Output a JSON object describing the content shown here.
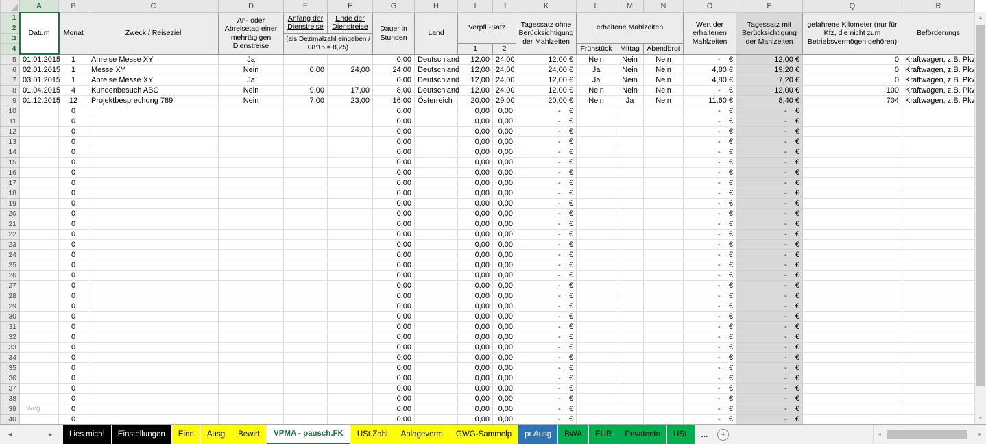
{
  "stray_label": "Weg",
  "icons": {
    "up": "▲",
    "down": "▼",
    "left": "◄",
    "right": "►",
    "tab_prev": "◄",
    "tab_next": "►",
    "ellipsis": "...",
    "plus": "+"
  },
  "grid": {
    "selected_column": "A",
    "columns": [
      "A",
      "B",
      "C",
      "D",
      "E",
      "F",
      "G",
      "H",
      "I",
      "J",
      "K",
      "L",
      "M",
      "N",
      "O",
      "P",
      "Q",
      "R"
    ],
    "header_gutter": [
      "1",
      "2",
      "3",
      "4"
    ],
    "header": {
      "datum": "Datum",
      "monat": "Monat",
      "zweck": "Zweck / Reiseziel",
      "an_ab": "An- oder Abreisetag einer mehrtägigen Dienstreise",
      "anfang": "Anfang der Dienstreise",
      "ende": "Ende der Dienstreise",
      "dezimal_note": "(als Dezimalzahl eingeben / 08:15 = 8,25)",
      "dauer": "Dauer in Stunden",
      "land": "Land",
      "verpfl": "Verpfl.-Satz",
      "verpfl_1": "1",
      "verpfl_2": "2",
      "tagessatz_ohne": "Tagessatz ohne Berücksichtigung der Mahlzeiten",
      "mahlzeiten": "erhaltene Mahlzeiten",
      "fruehstueck": "Frühstück",
      "mittag": "Mittag",
      "abendbrot": "Abendbrot",
      "wert": "Wert der erhaltenen Mahlzeiten",
      "tagessatz_mit": "Tagessatz mit Berücksichtigung der Mahlzeiten",
      "km": "gefahrene Kilometer (nur für Kfz, die nicht zum Betriebsvermögen gehören)",
      "befoerderung": "Beförderungs"
    },
    "col_align": [
      "left",
      "center",
      "left",
      "center",
      "right",
      "right",
      "right",
      "left",
      "right",
      "right",
      "right",
      "center",
      "center",
      "center",
      "right",
      "right",
      "right",
      "left"
    ],
    "rows": [
      {
        "n": "5",
        "cells": [
          "01.01.2015",
          "1",
          "Anreise Messe XY",
          "Ja",
          "",
          "",
          "0,00",
          "Deutschland",
          "12,00",
          "24,00",
          "12,00 €",
          "Nein",
          "Nein",
          "Nein",
          "-    €",
          "12,00 €",
          "0",
          "Kraftwagen, z.B. Pkw"
        ]
      },
      {
        "n": "6",
        "cells": [
          "02.01.2015",
          "1",
          "Messe XY",
          "Nein",
          "0,00",
          "24,00",
          "24,00",
          "Deutschland",
          "12,00",
          "24,00",
          "24,00 €",
          "Ja",
          "Nein",
          "Nein",
          "4,80 €",
          "19,20 €",
          "0",
          "Kraftwagen, z.B. Pkw"
        ]
      },
      {
        "n": "7",
        "cells": [
          "03.01.2015",
          "1",
          "Abreise Messe XY",
          "Ja",
          "",
          "",
          "0,00",
          "Deutschland",
          "12,00",
          "24,00",
          "12,00 €",
          "Ja",
          "Nein",
          "Nein",
          "4,80 €",
          "7,20 €",
          "0",
          "Kraftwagen, z.B. Pkw"
        ]
      },
      {
        "n": "8",
        "cells": [
          "01.04.2015",
          "4",
          "Kundenbesuch ABC",
          "Nein",
          "9,00",
          "17,00",
          "8,00",
          "Deutschland",
          "12,00",
          "24,00",
          "12,00 €",
          "Nein",
          "Nein",
          "Nein",
          "-    €",
          "12,00 €",
          "100",
          "Kraftwagen, z.B. Pkw"
        ]
      },
      {
        "n": "9",
        "cells": [
          "01.12.2015",
          "12",
          "Projektbesprechung 789",
          "Nein",
          "7,00",
          "23,00",
          "16,00",
          "Österreich",
          "20,00",
          "29,00",
          "20,00 €",
          "Nein",
          "Ja",
          "Nein",
          "11,60 €",
          "8,40 €",
          "704",
          "Kraftwagen, z.B. Pkw"
        ]
      },
      {
        "n": "10",
        "cells": [
          "",
          "0",
          "",
          "",
          "",
          "",
          "0,00",
          "",
          "0,00",
          "0,00",
          "-    €",
          "",
          "",
          "",
          "-    €",
          "-    €",
          "",
          ""
        ]
      },
      {
        "n": "11",
        "cells": [
          "",
          "0",
          "",
          "",
          "",
          "",
          "0,00",
          "",
          "0,00",
          "0,00",
          "-    €",
          "",
          "",
          "",
          "-    €",
          "-    €",
          "",
          ""
        ]
      },
      {
        "n": "12",
        "cells": [
          "",
          "0",
          "",
          "",
          "",
          "",
          "0,00",
          "",
          "0,00",
          "0,00",
          "-    €",
          "",
          "",
          "",
          "-    €",
          "-    €",
          "",
          ""
        ]
      },
      {
        "n": "13",
        "cells": [
          "",
          "0",
          "",
          "",
          "",
          "",
          "0,00",
          "",
          "0,00",
          "0,00",
          "-    €",
          "",
          "",
          "",
          "-    €",
          "-    €",
          "",
          ""
        ]
      },
      {
        "n": "14",
        "cells": [
          "",
          "0",
          "",
          "",
          "",
          "",
          "0,00",
          "",
          "0,00",
          "0,00",
          "-    €",
          "",
          "",
          "",
          "-    €",
          "-    €",
          "",
          ""
        ]
      },
      {
        "n": "15",
        "cells": [
          "",
          "0",
          "",
          "",
          "",
          "",
          "0,00",
          "",
          "0,00",
          "0,00",
          "-    €",
          "",
          "",
          "",
          "-    €",
          "-    €",
          "",
          ""
        ]
      },
      {
        "n": "16",
        "cells": [
          "",
          "0",
          "",
          "",
          "",
          "",
          "0,00",
          "",
          "0,00",
          "0,00",
          "-    €",
          "",
          "",
          "",
          "-    €",
          "-    €",
          "",
          ""
        ]
      },
      {
        "n": "17",
        "cells": [
          "",
          "0",
          "",
          "",
          "",
          "",
          "0,00",
          "",
          "0,00",
          "0,00",
          "-    €",
          "",
          "",
          "",
          "-    €",
          "-    €",
          "",
          ""
        ]
      },
      {
        "n": "18",
        "cells": [
          "",
          "0",
          "",
          "",
          "",
          "",
          "0,00",
          "",
          "0,00",
          "0,00",
          "-    €",
          "",
          "",
          "",
          "-    €",
          "-    €",
          "",
          ""
        ]
      },
      {
        "n": "19",
        "cells": [
          "",
          "0",
          "",
          "",
          "",
          "",
          "0,00",
          "",
          "0,00",
          "0,00",
          "-    €",
          "",
          "",
          "",
          "-    €",
          "-    €",
          "",
          ""
        ]
      },
      {
        "n": "20",
        "cells": [
          "",
          "0",
          "",
          "",
          "",
          "",
          "0,00",
          "",
          "0,00",
          "0,00",
          "-    €",
          "",
          "",
          "",
          "-    €",
          "-    €",
          "",
          ""
        ]
      },
      {
        "n": "21",
        "cells": [
          "",
          "0",
          "",
          "",
          "",
          "",
          "0,00",
          "",
          "0,00",
          "0,00",
          "-    €",
          "",
          "",
          "",
          "-    €",
          "-    €",
          "",
          ""
        ]
      },
      {
        "n": "22",
        "cells": [
          "",
          "0",
          "",
          "",
          "",
          "",
          "0,00",
          "",
          "0,00",
          "0,00",
          "-    €",
          "",
          "",
          "",
          "-    €",
          "-    €",
          "",
          ""
        ]
      },
      {
        "n": "23",
        "cells": [
          "",
          "0",
          "",
          "",
          "",
          "",
          "0,00",
          "",
          "0,00",
          "0,00",
          "-    €",
          "",
          "",
          "",
          "-    €",
          "-    €",
          "",
          ""
        ]
      },
      {
        "n": "24",
        "cells": [
          "",
          "0",
          "",
          "",
          "",
          "",
          "0,00",
          "",
          "0,00",
          "0,00",
          "-    €",
          "",
          "",
          "",
          "-    €",
          "-    €",
          "",
          ""
        ]
      },
      {
        "n": "25",
        "cells": [
          "",
          "0",
          "",
          "",
          "",
          "",
          "0,00",
          "",
          "0,00",
          "0,00",
          "-    €",
          "",
          "",
          "",
          "-    €",
          "-    €",
          "",
          ""
        ]
      },
      {
        "n": "26",
        "cells": [
          "",
          "0",
          "",
          "",
          "",
          "",
          "0,00",
          "",
          "0,00",
          "0,00",
          "-    €",
          "",
          "",
          "",
          "-    €",
          "-    €",
          "",
          ""
        ]
      },
      {
        "n": "27",
        "cells": [
          "",
          "0",
          "",
          "",
          "",
          "",
          "0,00",
          "",
          "0,00",
          "0,00",
          "-    €",
          "",
          "",
          "",
          "-    €",
          "-    €",
          "",
          ""
        ]
      },
      {
        "n": "28",
        "cells": [
          "",
          "0",
          "",
          "",
          "",
          "",
          "0,00",
          "",
          "0,00",
          "0,00",
          "-    €",
          "",
          "",
          "",
          "-    €",
          "-    €",
          "",
          ""
        ]
      },
      {
        "n": "29",
        "cells": [
          "",
          "0",
          "",
          "",
          "",
          "",
          "0,00",
          "",
          "0,00",
          "0,00",
          "-    €",
          "",
          "",
          "",
          "-    €",
          "-    €",
          "",
          ""
        ]
      },
      {
        "n": "30",
        "cells": [
          "",
          "0",
          "",
          "",
          "",
          "",
          "0,00",
          "",
          "0,00",
          "0,00",
          "-    €",
          "",
          "",
          "",
          "-    €",
          "-    €",
          "",
          ""
        ]
      },
      {
        "n": "31",
        "cells": [
          "",
          "0",
          "",
          "",
          "",
          "",
          "0,00",
          "",
          "0,00",
          "0,00",
          "-    €",
          "",
          "",
          "",
          "-    €",
          "-    €",
          "",
          ""
        ]
      },
      {
        "n": "32",
        "cells": [
          "",
          "0",
          "",
          "",
          "",
          "",
          "0,00",
          "",
          "0,00",
          "0,00",
          "-    €",
          "",
          "",
          "",
          "-    €",
          "-    €",
          "",
          ""
        ]
      },
      {
        "n": "33",
        "cells": [
          "",
          "0",
          "",
          "",
          "",
          "",
          "0,00",
          "",
          "0,00",
          "0,00",
          "-    €",
          "",
          "",
          "",
          "-    €",
          "-    €",
          "",
          ""
        ]
      },
      {
        "n": "34",
        "cells": [
          "",
          "0",
          "",
          "",
          "",
          "",
          "0,00",
          "",
          "0,00",
          "0,00",
          "-    €",
          "",
          "",
          "",
          "-    €",
          "-    €",
          "",
          ""
        ]
      },
      {
        "n": "35",
        "cells": [
          "",
          "0",
          "",
          "",
          "",
          "",
          "0,00",
          "",
          "0,00",
          "0,00",
          "-    €",
          "",
          "",
          "",
          "-    €",
          "-    €",
          "",
          ""
        ]
      },
      {
        "n": "36",
        "cells": [
          "",
          "0",
          "",
          "",
          "",
          "",
          "0,00",
          "",
          "0,00",
          "0,00",
          "-    €",
          "",
          "",
          "",
          "-    €",
          "-    €",
          "",
          ""
        ]
      },
      {
        "n": "37",
        "cells": [
          "",
          "0",
          "",
          "",
          "",
          "",
          "0,00",
          "",
          "0,00",
          "0,00",
          "-    €",
          "",
          "",
          "",
          "-    €",
          "-    €",
          "",
          ""
        ]
      },
      {
        "n": "38",
        "cells": [
          "",
          "0",
          "",
          "",
          "",
          "",
          "0,00",
          "",
          "0,00",
          "0,00",
          "-    €",
          "",
          "",
          "",
          "-    €",
          "-    €",
          "",
          ""
        ]
      },
      {
        "n": "39",
        "cells": [
          "",
          "0",
          "",
          "",
          "",
          "",
          "0,00",
          "",
          "0,00",
          "0,00",
          "-    €",
          "",
          "",
          "",
          "-    €",
          "-    €",
          "",
          ""
        ]
      },
      {
        "n": "40",
        "cells": [
          "",
          "0",
          "",
          "",
          "",
          "",
          "0,00",
          "",
          "0,00",
          "0,00",
          "-    €",
          "",
          "",
          "",
          "-    €",
          "-    €",
          "",
          ""
        ]
      }
    ]
  },
  "sheet_bar": {
    "tabs": [
      {
        "label": "Lies mich!",
        "style": "black"
      },
      {
        "label": "Einstellungen",
        "style": "black"
      },
      {
        "label": "Einn",
        "style": "yellow"
      },
      {
        "label": "Ausg",
        "style": "yellow"
      },
      {
        "label": "Bewirt",
        "style": "yellow"
      },
      {
        "label": "VPMA - pausch.FK",
        "style": "active"
      },
      {
        "label": "USt.Zahl",
        "style": "yellow"
      },
      {
        "label": "Anlageverm",
        "style": "yellow"
      },
      {
        "label": "GWG-Sammelp",
        "style": "yellow"
      },
      {
        "label": "pr.Ausg",
        "style": "blue"
      },
      {
        "label": "BWA",
        "style": "green"
      },
      {
        "label": "EÜR",
        "style": "green"
      },
      {
        "label": "Privatentn",
        "style": "green"
      },
      {
        "label": "USt.",
        "style": "green"
      }
    ]
  },
  "colors": {
    "accent_green": "#217346",
    "p_column_fill": "#D9D9D9",
    "tab_yellow": "#FFFF00",
    "tab_blue": "#2E74B5",
    "tab_green": "#00B050"
  }
}
